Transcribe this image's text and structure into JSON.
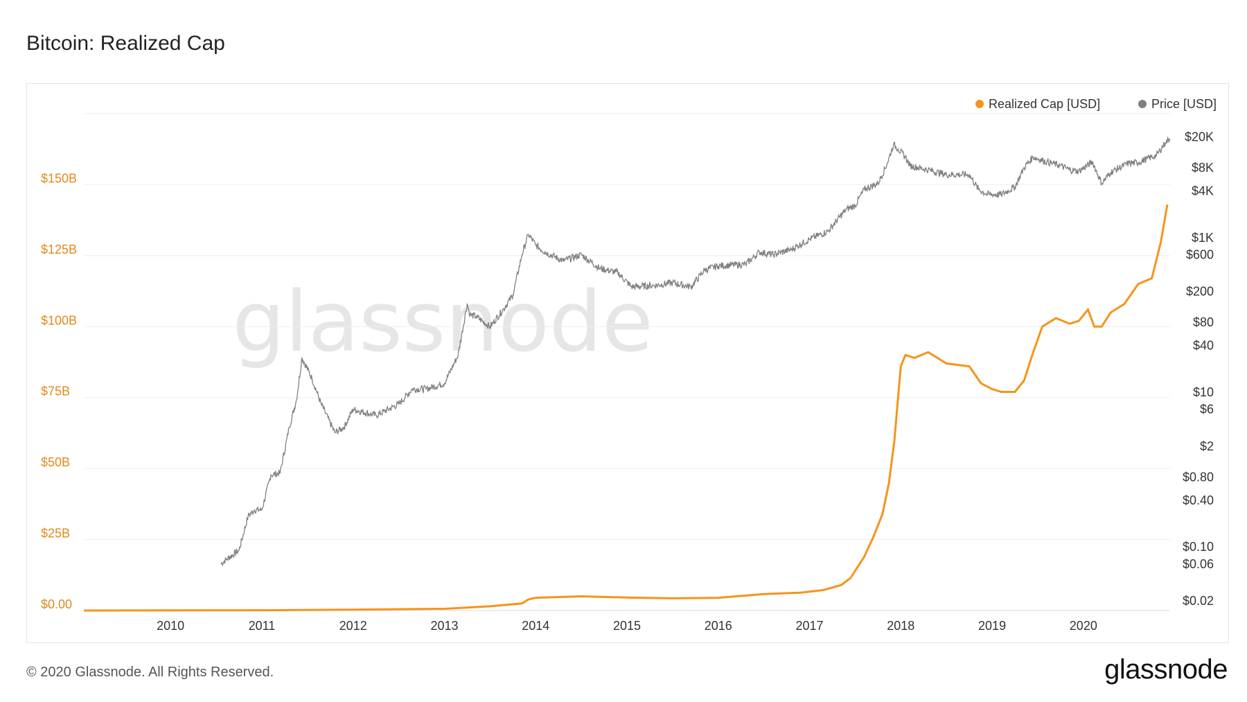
{
  "page": {
    "title": "Bitcoin: Realized Cap",
    "footer": "© 2020 Glassnode. All Rights Reserved.",
    "brand": "glassnode",
    "watermark": "glassnode"
  },
  "colors": {
    "realized_cap": "#f7931a",
    "price": "#808080",
    "grid": "#eeeeee",
    "left_axis_text": "#e08a1a"
  },
  "chart_data": {
    "type": "line",
    "title": "Bitcoin: Realized Cap",
    "legend_position": "top-right",
    "grid": true,
    "x_axis": {
      "range": [
        2009.05,
        2020.95
      ],
      "ticks": [
        "2010",
        "2011",
        "2012",
        "2013",
        "2014",
        "2015",
        "2016",
        "2017",
        "2018",
        "2019",
        "2020"
      ]
    },
    "y_left": {
      "scale": "linear",
      "range": [
        0,
        175000000000
      ],
      "ticks": [
        {
          "value": 0,
          "label": "$0.00"
        },
        {
          "value": 25000000000,
          "label": "$25B"
        },
        {
          "value": 50000000000,
          "label": "$50B"
        },
        {
          "value": 75000000000,
          "label": "$75B"
        },
        {
          "value": 100000000000,
          "label": "$100B"
        },
        {
          "value": 125000000000,
          "label": "$125B"
        },
        {
          "value": 150000000000,
          "label": "$150B"
        }
      ]
    },
    "y_right": {
      "scale": "log",
      "range": [
        0.015,
        40000
      ],
      "ticks": [
        {
          "value": 20000,
          "label": "$20K"
        },
        {
          "value": 8000,
          "label": "$8K"
        },
        {
          "value": 4000,
          "label": "$4K"
        },
        {
          "value": 1000,
          "label": "$1K"
        },
        {
          "value": 600,
          "label": "$600"
        },
        {
          "value": 200,
          "label": "$200"
        },
        {
          "value": 80,
          "label": "$80"
        },
        {
          "value": 40,
          "label": "$40"
        },
        {
          "value": 10,
          "label": "$10"
        },
        {
          "value": 6,
          "label": "$6"
        },
        {
          "value": 2,
          "label": "$2"
        },
        {
          "value": 0.8,
          "label": "$0.80"
        },
        {
          "value": 0.4,
          "label": "$0.40"
        },
        {
          "value": 0.1,
          "label": "$0.10"
        },
        {
          "value": 0.06,
          "label": "$0.06"
        },
        {
          "value": 0.02,
          "label": "$0.02"
        }
      ]
    },
    "series": [
      {
        "name": "Realized Cap [USD]",
        "axis": "left",
        "x": [
          2009.05,
          2011.0,
          2012.0,
          2013.0,
          2013.5,
          2013.85,
          2013.92,
          2014.0,
          2014.5,
          2015.0,
          2015.5,
          2016.0,
          2016.5,
          2016.9,
          2017.15,
          2017.35,
          2017.45,
          2017.6,
          2017.7,
          2017.8,
          2017.87,
          2017.93,
          2017.97,
          2018.0,
          2018.05,
          2018.15,
          2018.3,
          2018.5,
          2018.75,
          2018.88,
          2019.0,
          2019.1,
          2019.25,
          2019.35,
          2019.45,
          2019.55,
          2019.7,
          2019.85,
          2019.95,
          2020.05,
          2020.12,
          2020.2,
          2020.3,
          2020.45,
          2020.6,
          2020.75,
          2020.85,
          2020.92
        ],
        "values": [
          0,
          100000000,
          300000000,
          600000000,
          1500000000,
          2500000000,
          3900000000,
          4500000000,
          5000000000,
          4600000000,
          4300000000,
          4500000000,
          5800000000,
          6300000000,
          7200000000,
          9000000000,
          11500000000,
          19000000000,
          26000000000,
          34000000000,
          45000000000,
          60000000000,
          75000000000,
          86000000000,
          90000000000,
          89000000000,
          91000000000,
          87000000000,
          86000000000,
          80000000000,
          78000000000,
          77000000000,
          77000000000,
          81000000000,
          91000000000,
          100000000000,
          103000000000,
          101000000000,
          102000000000,
          106000000000,
          100000000000,
          100000000000,
          105000000000,
          108000000000,
          115000000000,
          117000000000,
          130000000000,
          143000000000
        ]
      },
      {
        "name": "Price [USD]",
        "axis": "right",
        "x": [
          2010.55,
          2010.62,
          2010.75,
          2010.85,
          2010.92,
          2011.0,
          2011.1,
          2011.2,
          2011.3,
          2011.38,
          2011.44,
          2011.55,
          2011.65,
          2011.8,
          2011.9,
          2012.0,
          2012.25,
          2012.5,
          2012.65,
          2012.8,
          2013.0,
          2013.15,
          2013.25,
          2013.28,
          2013.35,
          2013.5,
          2013.65,
          2013.75,
          2013.85,
          2013.92,
          2014.0,
          2014.1,
          2014.3,
          2014.5,
          2014.7,
          2014.9,
          2015.05,
          2015.3,
          2015.5,
          2015.7,
          2015.85,
          2016.0,
          2016.3,
          2016.45,
          2016.6,
          2016.8,
          2017.0,
          2017.2,
          2017.4,
          2017.5,
          2017.6,
          2017.75,
          2017.85,
          2017.92,
          2017.97,
          2018.05,
          2018.1,
          2018.3,
          2018.5,
          2018.75,
          2018.85,
          2018.95,
          2019.1,
          2019.25,
          2019.35,
          2019.45,
          2019.6,
          2019.75,
          2019.85,
          2019.95,
          2020.1,
          2020.2,
          2020.3,
          2020.5,
          2020.6,
          2020.7,
          2020.8,
          2020.9,
          2020.95
        ],
        "values": [
          0.06,
          0.07,
          0.09,
          0.25,
          0.3,
          0.3,
          0.85,
          0.9,
          3.5,
          8.0,
          28.0,
          15.0,
          7.0,
          3.0,
          3.5,
          6.0,
          5.0,
          7.0,
          11.0,
          11.0,
          13.0,
          30.0,
          140.0,
          100.0,
          95.0,
          70.0,
          120.0,
          180.0,
          600.0,
          1100.0,
          800.0,
          650.0,
          500.0,
          600.0,
          400.0,
          350.0,
          230.0,
          240.0,
          260.0,
          230.0,
          380.0,
          430.0,
          450.0,
          650.0,
          600.0,
          700.0,
          950.0,
          1200.0,
          2300.0,
          2600.0,
          4200.0,
          5000.0,
          9000.0,
          16000.0,
          14000.0,
          11000.0,
          8500.0,
          7500.0,
          6500.0,
          6500.0,
          4200.0,
          3600.0,
          3600.0,
          4500.0,
          8000.0,
          11000.0,
          9500.0,
          8500.0,
          7500.0,
          7200.0,
          9500.0,
          5000.0,
          7000.0,
          9200.0,
          9300.0,
          10500.0,
          11500.0,
          17000.0,
          19000.0
        ]
      }
    ]
  }
}
